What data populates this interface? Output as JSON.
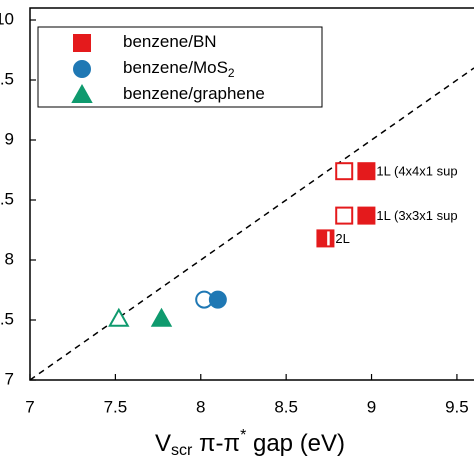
{
  "chart_data": {
    "type": "scatter",
    "xlabel": [
      "V",
      "scr",
      " π-π",
      "*",
      " gap (eV)"
    ],
    "xlim": [
      7,
      9.6
    ],
    "ylim": [
      7,
      10.1
    ],
    "xticks": [
      7,
      7.5,
      8,
      8.5,
      9,
      9.5
    ],
    "yticks": [
      7,
      7.5,
      8,
      8.5,
      9,
      9.5,
      10
    ],
    "reference_line": {
      "style": "dashed",
      "color": "#000000"
    },
    "legend": "upper left",
    "series": [
      {
        "name": [
          "benzene/BN"
        ],
        "marker": "square",
        "color": "#e41a1c",
        "x": [
          8.84,
          8.97,
          8.84,
          8.97,
          8.73
        ],
        "values": [
          8.74,
          8.74,
          8.37,
          8.37,
          8.18
        ],
        "fill": [
          "open",
          "filled",
          "open",
          "filled",
          "half"
        ]
      },
      {
        "name": [
          "benzene/MoS",
          "2"
        ],
        "marker": "circle",
        "color": "#1f78b4",
        "x": [
          8.02,
          8.1
        ],
        "values": [
          7.67,
          7.67
        ],
        "fill": [
          "open",
          "filled"
        ]
      },
      {
        "name": [
          "benzene/graphene"
        ],
        "marker": "triangle",
        "color": "#0f9a6e",
        "x": [
          7.52,
          7.77
        ],
        "values": [
          7.51,
          7.51
        ],
        "fill": [
          "open",
          "filled"
        ]
      }
    ],
    "annotations": [
      "1L (4x4x1 sup",
      "1L (3x3x1 sup",
      "2L"
    ]
  }
}
